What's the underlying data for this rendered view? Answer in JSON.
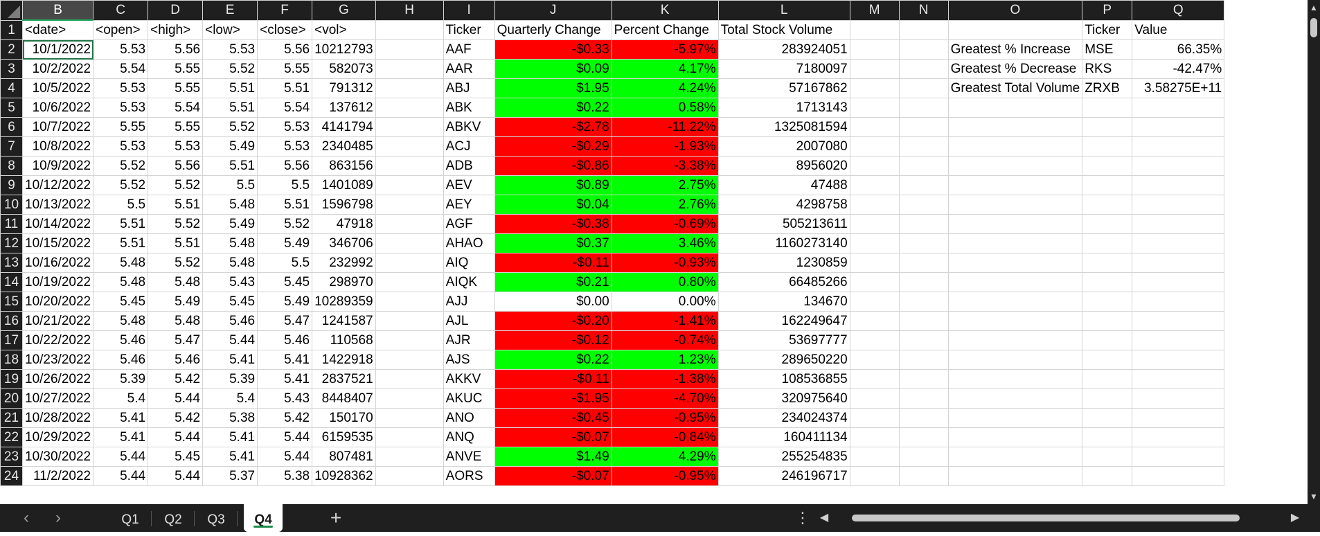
{
  "selected_column": "B",
  "columns": [
    "B",
    "C",
    "D",
    "E",
    "F",
    "G",
    "H",
    "I",
    "J",
    "K",
    "L",
    "M",
    "N",
    "O",
    "P",
    "Q"
  ],
  "row_numbers": [
    "1",
    "2",
    "3",
    "4",
    "5",
    "6",
    "7",
    "8",
    "9",
    "10",
    "11",
    "12",
    "13",
    "14",
    "15",
    "16",
    "17",
    "18",
    "19",
    "20",
    "21",
    "22",
    "23",
    "24"
  ],
  "headers": {
    "date": "<date>",
    "open": "<open>",
    "high": "<high>",
    "low": "<low>",
    "close": "<close>",
    "vol": "<vol>",
    "ticker": "Ticker",
    "quarterly_change": "Quarterly Change",
    "percent_change": "Percent Change",
    "total_stock_volume": "Total Stock Volume"
  },
  "price_rows": [
    [
      "10/1/2022",
      "5.53",
      "5.56",
      "5.53",
      "5.56",
      "10212793"
    ],
    [
      "10/2/2022",
      "5.54",
      "5.55",
      "5.52",
      "5.55",
      "582073"
    ],
    [
      "10/5/2022",
      "5.53",
      "5.55",
      "5.51",
      "5.51",
      "791312"
    ],
    [
      "10/6/2022",
      "5.53",
      "5.54",
      "5.51",
      "5.54",
      "137612"
    ],
    [
      "10/7/2022",
      "5.55",
      "5.55",
      "5.52",
      "5.53",
      "4141794"
    ],
    [
      "10/8/2022",
      "5.53",
      "5.53",
      "5.49",
      "5.53",
      "2340485"
    ],
    [
      "10/9/2022",
      "5.52",
      "5.56",
      "5.51",
      "5.56",
      "863156"
    ],
    [
      "10/12/2022",
      "5.52",
      "5.52",
      "5.5",
      "5.5",
      "1401089"
    ],
    [
      "10/13/2022",
      "5.5",
      "5.51",
      "5.48",
      "5.51",
      "1596798"
    ],
    [
      "10/14/2022",
      "5.51",
      "5.52",
      "5.49",
      "5.52",
      "47918"
    ],
    [
      "10/15/2022",
      "5.51",
      "5.51",
      "5.48",
      "5.49",
      "346706"
    ],
    [
      "10/16/2022",
      "5.48",
      "5.52",
      "5.48",
      "5.5",
      "232992"
    ],
    [
      "10/19/2022",
      "5.48",
      "5.48",
      "5.43",
      "5.45",
      "298970"
    ],
    [
      "10/20/2022",
      "5.45",
      "5.49",
      "5.45",
      "5.49",
      "10289359"
    ],
    [
      "10/21/2022",
      "5.48",
      "5.48",
      "5.46",
      "5.47",
      "1241587"
    ],
    [
      "10/22/2022",
      "5.46",
      "5.47",
      "5.44",
      "5.46",
      "110568"
    ],
    [
      "10/23/2022",
      "5.46",
      "5.46",
      "5.41",
      "5.41",
      "1422918"
    ],
    [
      "10/26/2022",
      "5.39",
      "5.42",
      "5.39",
      "5.41",
      "2837521"
    ],
    [
      "10/27/2022",
      "5.4",
      "5.44",
      "5.4",
      "5.43",
      "8448407"
    ],
    [
      "10/28/2022",
      "5.41",
      "5.42",
      "5.38",
      "5.42",
      "150170"
    ],
    [
      "10/29/2022",
      "5.41",
      "5.44",
      "5.41",
      "5.44",
      "6159535"
    ],
    [
      "10/30/2022",
      "5.44",
      "5.45",
      "5.41",
      "5.44",
      "807481"
    ],
    [
      "11/2/2022",
      "5.44",
      "5.44",
      "5.37",
      "5.38",
      "10928362"
    ]
  ],
  "summary_rows": [
    {
      "ticker": "AAF",
      "qchange": "-$0.33",
      "pchange": "-5.97%",
      "volume": "283924051",
      "status": "neg"
    },
    {
      "ticker": "AAR",
      "qchange": "$0.09",
      "pchange": "4.17%",
      "volume": "7180097",
      "status": "pos"
    },
    {
      "ticker": "ABJ",
      "qchange": "$1.95",
      "pchange": "4.24%",
      "volume": "57167862",
      "status": "pos"
    },
    {
      "ticker": "ABK",
      "qchange": "$0.22",
      "pchange": "0.58%",
      "volume": "1713143",
      "status": "pos"
    },
    {
      "ticker": "ABKV",
      "qchange": "-$2.78",
      "pchange": "-11.22%",
      "volume": "1325081594",
      "status": "neg"
    },
    {
      "ticker": "ACJ",
      "qchange": "-$0.29",
      "pchange": "-1.93%",
      "volume": "2007080",
      "status": "neg"
    },
    {
      "ticker": "ADB",
      "qchange": "-$0.86",
      "pchange": "-3.38%",
      "volume": "8956020",
      "status": "neg"
    },
    {
      "ticker": "AEV",
      "qchange": "$0.89",
      "pchange": "2.75%",
      "volume": "47488",
      "status": "pos"
    },
    {
      "ticker": "AEY",
      "qchange": "$0.04",
      "pchange": "2.76%",
      "volume": "4298758",
      "status": "pos"
    },
    {
      "ticker": "AGF",
      "qchange": "-$0.38",
      "pchange": "-0.69%",
      "volume": "505213611",
      "status": "neg"
    },
    {
      "ticker": "AHAO",
      "qchange": "$0.37",
      "pchange": "3.46%",
      "volume": "1160273140",
      "status": "pos"
    },
    {
      "ticker": "AIQ",
      "qchange": "-$0.11",
      "pchange": "-0.93%",
      "volume": "1230859",
      "status": "neg"
    },
    {
      "ticker": "AIQK",
      "qchange": "$0.21",
      "pchange": "0.80%",
      "volume": "66485266",
      "status": "pos"
    },
    {
      "ticker": "AJJ",
      "qchange": "$0.00",
      "pchange": "0.00%",
      "volume": "134670",
      "status": "none"
    },
    {
      "ticker": "AJL",
      "qchange": "-$0.20",
      "pchange": "-1.41%",
      "volume": "162249647",
      "status": "neg"
    },
    {
      "ticker": "AJR",
      "qchange": "-$0.12",
      "pchange": "-0.74%",
      "volume": "53697777",
      "status": "neg"
    },
    {
      "ticker": "AJS",
      "qchange": "$0.22",
      "pchange": "1.23%",
      "volume": "289650220",
      "status": "pos"
    },
    {
      "ticker": "AKKV",
      "qchange": "-$0.11",
      "pchange": "-1.38%",
      "volume": "108536855",
      "status": "neg"
    },
    {
      "ticker": "AKUC",
      "qchange": "-$1.95",
      "pchange": "-4.70%",
      "volume": "320975640",
      "status": "neg"
    },
    {
      "ticker": "ANO",
      "qchange": "-$0.45",
      "pchange": "-0.95%",
      "volume": "234024374",
      "status": "neg"
    },
    {
      "ticker": "ANQ",
      "qchange": "-$0.07",
      "pchange": "-0.84%",
      "volume": "160411134",
      "status": "neg"
    },
    {
      "ticker": "ANVE",
      "qchange": "$1.49",
      "pchange": "4.29%",
      "volume": "255254835",
      "status": "pos"
    },
    {
      "ticker": "AORS",
      "qchange": "-$0.07",
      "pchange": "-0.95%",
      "volume": "246196717",
      "status": "neg"
    }
  ],
  "greatest": {
    "header_ticker": "Ticker",
    "header_value": "Value",
    "rows": [
      {
        "label": "Greatest % Increase",
        "ticker": "MSE",
        "value": "66.35%"
      },
      {
        "label": "Greatest % Decrease",
        "ticker": "RKS",
        "value": "-42.47%"
      },
      {
        "label": "Greatest Total Volume",
        "ticker": "ZRXB",
        "value": "3.58275E+11"
      }
    ]
  },
  "sheet_tabs": [
    "Q1",
    "Q2",
    "Q3",
    "Q4"
  ],
  "active_tab": "Q4",
  "tabbar": {
    "add_symbol": "+",
    "more_symbol": "⋮",
    "prev_symbol": "‹",
    "next_symbol": "›"
  },
  "colors": {
    "negative": "#ff0000",
    "positive": "#00ff00",
    "selection": "#217346",
    "chrome": "#1f1f1f"
  }
}
